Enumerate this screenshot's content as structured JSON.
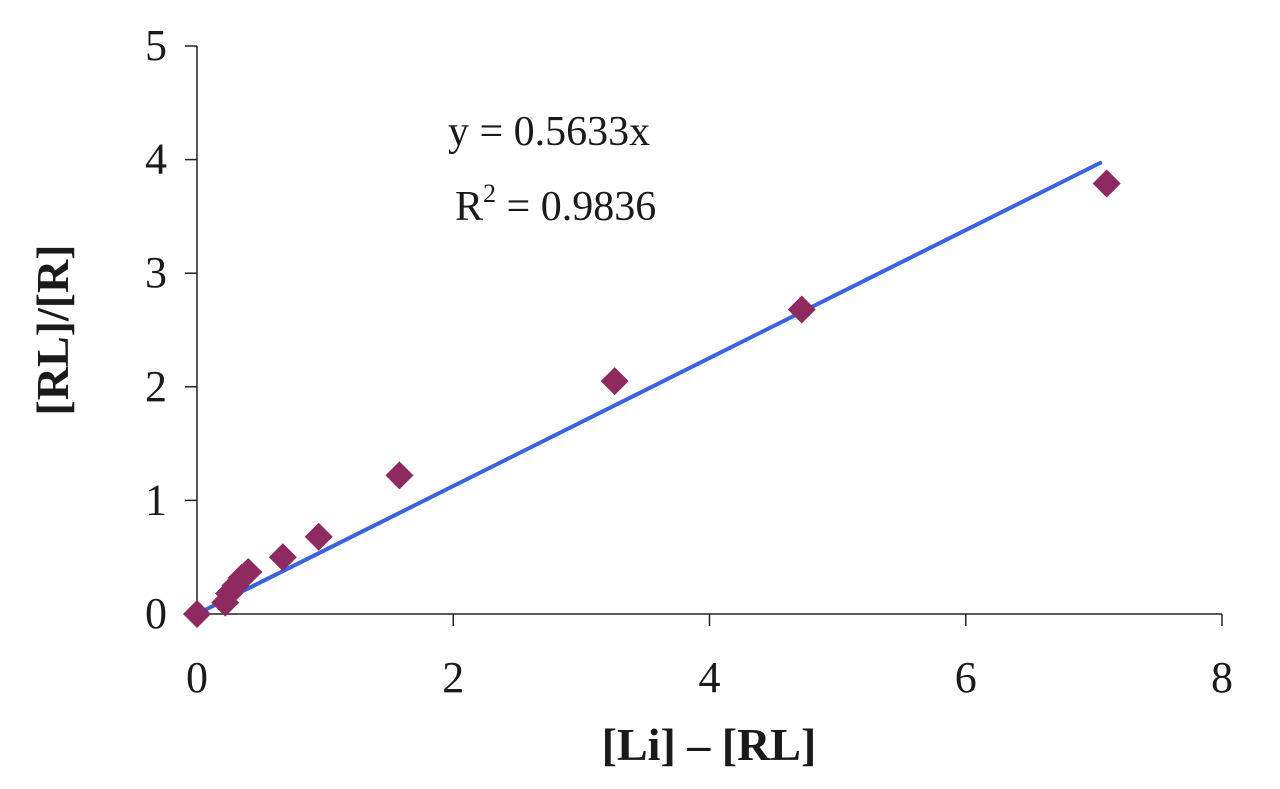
{
  "chart_data": {
    "type": "scatter",
    "xlabel": "[Li] – [RL]",
    "ylabel": "[RL]/[R]",
    "xlim": [
      0,
      8
    ],
    "ylim": [
      0,
      5
    ],
    "xticks": [
      0,
      2,
      4,
      6,
      8
    ],
    "yticks": [
      0,
      1,
      2,
      3,
      4,
      5
    ],
    "grid": false,
    "series": [
      {
        "marker": "diamond",
        "color": "#8e2a5f",
        "points": [
          {
            "x": 0.0,
            "y": 0.0
          },
          {
            "x": 0.22,
            "y": 0.1
          },
          {
            "x": 0.25,
            "y": 0.18
          },
          {
            "x": 0.3,
            "y": 0.25
          },
          {
            "x": 0.35,
            "y": 0.32
          },
          {
            "x": 0.4,
            "y": 0.37
          },
          {
            "x": 0.67,
            "y": 0.5
          },
          {
            "x": 0.95,
            "y": 0.68
          },
          {
            "x": 1.58,
            "y": 1.22
          },
          {
            "x": 3.26,
            "y": 2.05
          },
          {
            "x": 4.72,
            "y": 2.68
          },
          {
            "x": 7.1,
            "y": 3.79
          }
        ]
      }
    ],
    "trendline": {
      "color": "#3b63e0",
      "slope": 0.5633,
      "x_range": [
        0,
        7.05
      ]
    },
    "annotation": {
      "equation": "y = 0.5633x",
      "r2_prefix": "R",
      "r2_sup": "2",
      "r2_suffix": " = 0.9836"
    }
  }
}
